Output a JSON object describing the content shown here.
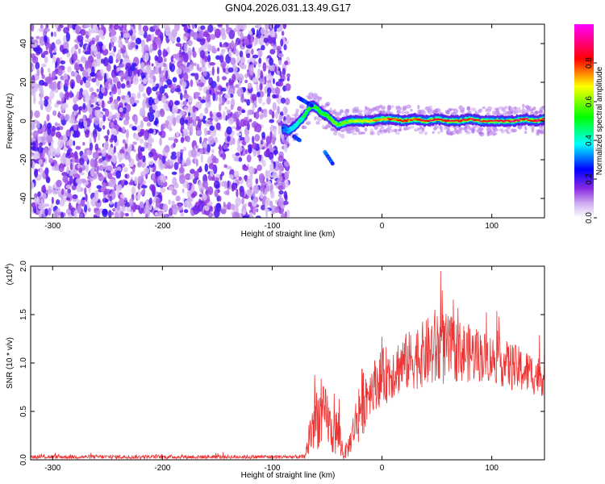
{
  "figure_title": "GN04.2026.031.13.49.G17",
  "chart_data": [
    {
      "type": "heatmap",
      "title": "GN04.2026.031.13.49.G17",
      "xlabel": "Height of straight line (km)",
      "ylabel": "Frequency (Hz)",
      "xlim": [
        -320,
        148
      ],
      "ylim": [
        -50,
        50
      ],
      "x_ticks": [
        -300,
        -200,
        -100,
        0,
        100
      ],
      "x_tick_labels": [
        "-300",
        "-200",
        "-100",
        "0",
        "100"
      ],
      "y_ticks": [
        -40,
        -20,
        0,
        20,
        40
      ],
      "y_tick_labels": [
        "-40",
        "-20",
        "0",
        "20",
        "40"
      ],
      "noise_region_x": [
        -320,
        -88
      ],
      "signal_trace": [
        {
          "x": -90,
          "y": -4,
          "amp": 0.3
        },
        {
          "x": -85,
          "y": -5,
          "amp": 0.35
        },
        {
          "x": -80,
          "y": -3,
          "amp": 0.4
        },
        {
          "x": -75,
          "y": 0,
          "amp": 0.45
        },
        {
          "x": -70,
          "y": 3,
          "amp": 0.5
        },
        {
          "x": -65,
          "y": 8,
          "amp": 0.55
        },
        {
          "x": -60,
          "y": 7,
          "amp": 0.55
        },
        {
          "x": -55,
          "y": 4,
          "amp": 0.55
        },
        {
          "x": -50,
          "y": 3,
          "amp": 0.55
        },
        {
          "x": -45,
          "y": 0,
          "amp": 0.6
        },
        {
          "x": -40,
          "y": -2,
          "amp": 0.6
        },
        {
          "x": -35,
          "y": -1,
          "amp": 0.6
        },
        {
          "x": -30,
          "y": 0,
          "amp": 0.65
        },
        {
          "x": -20,
          "y": 0,
          "amp": 0.7
        },
        {
          "x": -10,
          "y": 0,
          "amp": 0.75
        },
        {
          "x": 0,
          "y": 1,
          "amp": 0.8
        },
        {
          "x": 10,
          "y": 1,
          "amp": 0.85
        },
        {
          "x": 20,
          "y": 0,
          "amp": 0.9
        },
        {
          "x": 30,
          "y": 1,
          "amp": 0.9
        },
        {
          "x": 40,
          "y": 0,
          "amp": 0.9
        },
        {
          "x": 50,
          "y": 1,
          "amp": 0.92
        },
        {
          "x": 60,
          "y": 0,
          "amp": 0.92
        },
        {
          "x": 70,
          "y": 0,
          "amp": 0.93
        },
        {
          "x": 80,
          "y": 1,
          "amp": 0.93
        },
        {
          "x": 90,
          "y": 0,
          "amp": 0.94
        },
        {
          "x": 100,
          "y": 0,
          "amp": 0.94
        },
        {
          "x": 110,
          "y": 0,
          "amp": 0.95
        },
        {
          "x": 120,
          "y": 0,
          "amp": 0.95
        },
        {
          "x": 130,
          "y": 1,
          "amp": 0.95
        },
        {
          "x": 140,
          "y": 0,
          "amp": 0.95
        },
        {
          "x": 148,
          "y": 1,
          "amp": 0.95
        }
      ],
      "secondary_traces": [
        [
          {
            "x": -76,
            "y": 12
          },
          {
            "x": -70,
            "y": 10
          },
          {
            "x": -64,
            "y": 8
          }
        ],
        [
          {
            "x": -80,
            "y": -8
          },
          {
            "x": -75,
            "y": -10
          }
        ],
        [
          {
            "x": -52,
            "y": -16
          },
          {
            "x": -45,
            "y": -22
          }
        ]
      ]
    },
    {
      "type": "line",
      "xlabel": "Height of straight line (km)",
      "ylabel": "SNR (10 * v/v)",
      "y_scale_label": "(x10",
      "y_scale_exponent": "4",
      "xlim": [
        -320,
        148
      ],
      "ylim": [
        0,
        2.0
      ],
      "x_ticks": [
        -300,
        -200,
        -100,
        0,
        100
      ],
      "x_tick_labels": [
        "-300",
        "-200",
        "-100",
        "0",
        "100"
      ],
      "y_ticks": [
        0,
        0.5,
        1.0,
        1.5,
        2.0
      ],
      "y_tick_labels": [
        "0.0",
        "0.5",
        "1.0",
        "1.5",
        "2.0"
      ],
      "color": "#ee3333",
      "envelope": [
        {
          "x": -320,
          "mean": 0.03,
          "spread": 0.02
        },
        {
          "x": -70,
          "mean": 0.03,
          "spread": 0.02
        },
        {
          "x": -66,
          "mean": 0.25,
          "spread": 0.25
        },
        {
          "x": -60,
          "mean": 0.45,
          "spread": 0.35
        },
        {
          "x": -50,
          "mean": 0.45,
          "spread": 0.3
        },
        {
          "x": -45,
          "mean": 0.25,
          "spread": 0.2
        },
        {
          "x": -40,
          "mean": 0.3,
          "spread": 0.3
        },
        {
          "x": -35,
          "mean": 0.05,
          "spread": 0.05
        },
        {
          "x": -30,
          "mean": 0.15,
          "spread": 0.12
        },
        {
          "x": -25,
          "mean": 0.35,
          "spread": 0.2
        },
        {
          "x": -20,
          "mean": 0.55,
          "spread": 0.4
        },
        {
          "x": -10,
          "mean": 0.75,
          "spread": 0.25
        },
        {
          "x": 0,
          "mean": 0.85,
          "spread": 0.3
        },
        {
          "x": 20,
          "mean": 1.0,
          "spread": 0.3
        },
        {
          "x": 40,
          "mean": 1.1,
          "spread": 0.35
        },
        {
          "x": 50,
          "mean": 1.15,
          "spread": 0.45
        },
        {
          "x": 60,
          "mean": 1.15,
          "spread": 0.35
        },
        {
          "x": 80,
          "mean": 1.1,
          "spread": 0.3
        },
        {
          "x": 100,
          "mean": 1.05,
          "spread": 0.25
        },
        {
          "x": 120,
          "mean": 0.95,
          "spread": 0.25
        },
        {
          "x": 148,
          "mean": 0.85,
          "spread": 0.2
        }
      ]
    }
  ],
  "colorbar": {
    "label": "Normalized spectral amplitude",
    "range": [
      0,
      1
    ],
    "ticks": [
      0.0,
      0.2,
      0.4,
      0.6,
      0.8
    ],
    "tick_labels": [
      "0.0",
      "0.2",
      "0.4",
      "0.6",
      "0.8"
    ],
    "stops": [
      {
        "v": 0.0,
        "color": "#ffffff"
      },
      {
        "v": 0.07,
        "color": "#d2b4f0"
      },
      {
        "v": 0.15,
        "color": "#8a2be2"
      },
      {
        "v": 0.25,
        "color": "#0000ff"
      },
      {
        "v": 0.38,
        "color": "#00ffff"
      },
      {
        "v": 0.52,
        "color": "#00ff00"
      },
      {
        "v": 0.68,
        "color": "#ffff00"
      },
      {
        "v": 0.82,
        "color": "#ff0000"
      },
      {
        "v": 1.0,
        "color": "#ff00ff"
      }
    ]
  }
}
